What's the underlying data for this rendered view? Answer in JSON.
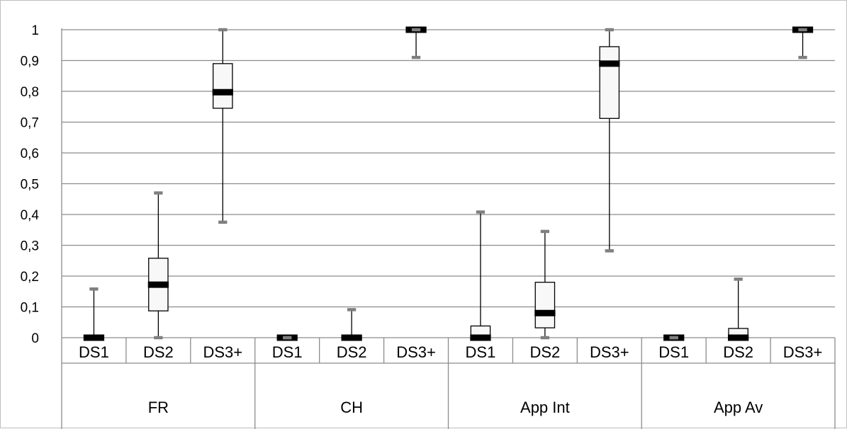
{
  "chart_data": {
    "type": "boxplot",
    "ylim": [
      0,
      1
    ],
    "yticks": [
      0,
      0.1,
      0.2,
      0.3,
      0.4,
      0.5,
      0.6,
      0.7,
      0.8,
      0.9,
      1
    ],
    "ytick_labels": [
      "0",
      "0,1",
      "0,2",
      "0,3",
      "0,4",
      "0,5",
      "0,6",
      "0,7",
      "0,8",
      "0,9",
      "1"
    ],
    "grid": "horizontal",
    "legend": "none",
    "groups": [
      {
        "label": "FR",
        "boxes": [
          {
            "label": "DS1",
            "min": 0,
            "q1": 0,
            "median": 0,
            "q3": 0,
            "max": 0.158
          },
          {
            "label": "DS2",
            "min": 0,
            "q1": 0.087,
            "median": 0.172,
            "q3": 0.258,
            "max": 0.47
          },
          {
            "label": "DS3+",
            "min": 0.375,
            "q1": 0.745,
            "median": 0.797,
            "q3": 0.89,
            "max": 1
          }
        ]
      },
      {
        "label": "CH",
        "boxes": [
          {
            "label": "DS1",
            "min": 0,
            "q1": 0,
            "median": 0,
            "q3": 0,
            "max": 0
          },
          {
            "label": "DS2",
            "min": 0,
            "q1": 0,
            "median": 0,
            "q3": 0,
            "max": 0.091
          },
          {
            "label": "DS3+",
            "min": 0.91,
            "q1": 1,
            "median": 1,
            "q3": 1,
            "max": 1
          }
        ]
      },
      {
        "label": "App Int",
        "boxes": [
          {
            "label": "DS1",
            "min": 0,
            "q1": 0,
            "median": 0,
            "q3": 0.038,
            "max": 0.408
          },
          {
            "label": "DS2",
            "min": 0,
            "q1": 0.032,
            "median": 0.08,
            "q3": 0.18,
            "max": 0.345
          },
          {
            "label": "DS3+",
            "min": 0.282,
            "q1": 0.712,
            "median": 0.89,
            "q3": 0.945,
            "max": 1
          }
        ]
      },
      {
        "label": "App Av",
        "boxes": [
          {
            "label": "DS1",
            "min": 0,
            "q1": 0,
            "median": 0,
            "q3": 0,
            "max": 0
          },
          {
            "label": "DS2",
            "min": 0,
            "q1": 0,
            "median": 0,
            "q3": 0.03,
            "max": 0.19
          },
          {
            "label": "DS3+",
            "min": 0.91,
            "q1": 1,
            "median": 1,
            "q3": 1,
            "max": 1
          }
        ]
      }
    ],
    "colors": {
      "grid": "#8c8c8c",
      "box_fill": "#f8f8f8",
      "box_stroke": "#000000",
      "median": "#000000",
      "cap": "#7f7f7f",
      "axis": "#8c8c8c"
    }
  }
}
